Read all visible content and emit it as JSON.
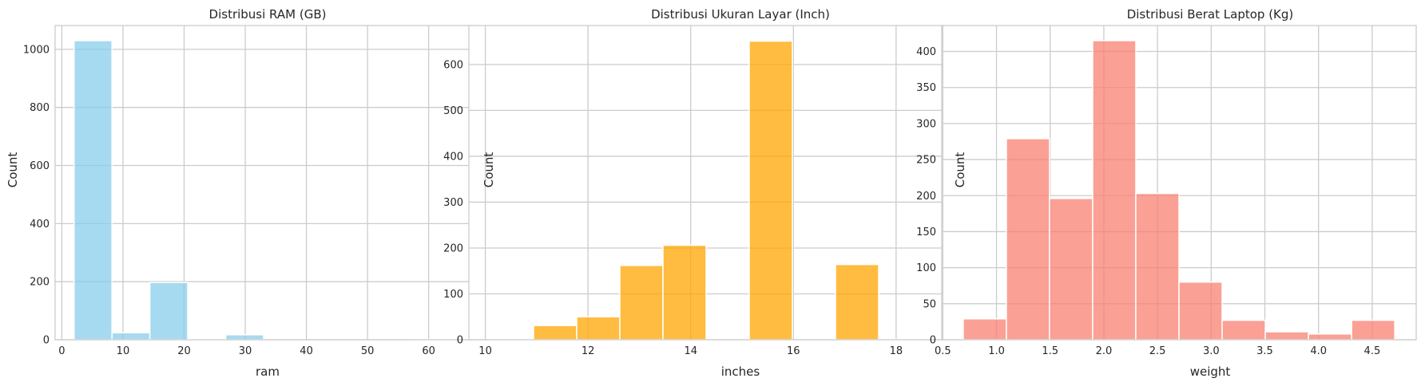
{
  "chart_data": [
    {
      "type": "bar",
      "title": "Distribusi RAM (GB)",
      "xlabel": "ram",
      "ylabel": "Count",
      "color": "#87ceeb",
      "bins": [
        {
          "x0": 2,
          "x1": 8.2,
          "count": 1030
        },
        {
          "x0": 8.2,
          "x1": 14.4,
          "count": 24
        },
        {
          "x0": 14.4,
          "x1": 20.6,
          "count": 197
        },
        {
          "x0": 20.6,
          "x1": 26.8,
          "count": 2
        },
        {
          "x0": 26.8,
          "x1": 33,
          "count": 17
        },
        {
          "x0": 33,
          "x1": 39.2,
          "count": 0
        },
        {
          "x0": 39.2,
          "x1": 45.4,
          "count": 0
        },
        {
          "x0": 45.4,
          "x1": 51.6,
          "count": 0
        },
        {
          "x0": 51.6,
          "x1": 57.8,
          "count": 0
        },
        {
          "x0": 57.8,
          "x1": 64,
          "count": 1
        }
      ],
      "xlim": [
        -1.1,
        67.1
      ],
      "ylim": [
        0,
        1082
      ],
      "xticks": [
        0,
        10,
        20,
        30,
        40,
        50,
        60
      ],
      "yticks": [
        0,
        200,
        400,
        600,
        800,
        1000
      ],
      "grid": true
    },
    {
      "type": "bar",
      "title": "Distribusi Ukuran Layar (Inch)",
      "xlabel": "inches",
      "ylabel": "Count",
      "color": "#ffa500",
      "bins": [
        {
          "x0": 10.1,
          "x1": 10.94,
          "count": 1
        },
        {
          "x0": 10.94,
          "x1": 11.78,
          "count": 31
        },
        {
          "x0": 11.78,
          "x1": 12.62,
          "count": 50
        },
        {
          "x0": 12.62,
          "x1": 13.46,
          "count": 162
        },
        {
          "x0": 13.46,
          "x1": 14.3,
          "count": 206
        },
        {
          "x0": 14.3,
          "x1": 15.14,
          "count": 0
        },
        {
          "x0": 15.14,
          "x1": 15.98,
          "count": 651
        },
        {
          "x0": 15.98,
          "x1": 16.82,
          "count": 0
        },
        {
          "x0": 16.82,
          "x1": 17.66,
          "count": 164
        },
        {
          "x0": 17.66,
          "x1": 18.5,
          "count": 1
        }
      ],
      "xlim": [
        9.68,
        18.92
      ],
      "ylim": [
        0,
        685
      ],
      "xticks": [
        10,
        12,
        14,
        16,
        18
      ],
      "yticks": [
        0,
        100,
        200,
        300,
        400,
        500,
        600
      ],
      "grid": true
    },
    {
      "type": "bar",
      "title": "Distribusi Berat Laptop (Kg)",
      "xlabel": "weight",
      "ylabel": "Count",
      "color": "#fa8072",
      "bins": [
        {
          "x0": 0.69,
          "x1": 1.092,
          "count": 29
        },
        {
          "x0": 1.092,
          "x1": 1.494,
          "count": 279
        },
        {
          "x0": 1.494,
          "x1": 1.896,
          "count": 196
        },
        {
          "x0": 1.896,
          "x1": 2.298,
          "count": 415
        },
        {
          "x0": 2.298,
          "x1": 2.7,
          "count": 203
        },
        {
          "x0": 2.7,
          "x1": 3.102,
          "count": 80
        },
        {
          "x0": 3.102,
          "x1": 3.504,
          "count": 27
        },
        {
          "x0": 3.504,
          "x1": 3.906,
          "count": 11
        },
        {
          "x0": 3.906,
          "x1": 4.308,
          "count": 8
        },
        {
          "x0": 4.308,
          "x1": 4.71,
          "count": 27
        }
      ],
      "xlim": [
        0.49,
        4.91
      ],
      "ylim": [
        0,
        436
      ],
      "xticks": [
        0.5,
        1.0,
        1.5,
        2.0,
        2.5,
        3.0,
        3.5,
        4.0,
        4.5
      ],
      "yticks": [
        0,
        50,
        100,
        150,
        200,
        250,
        300,
        350,
        400
      ],
      "grid": true
    }
  ]
}
